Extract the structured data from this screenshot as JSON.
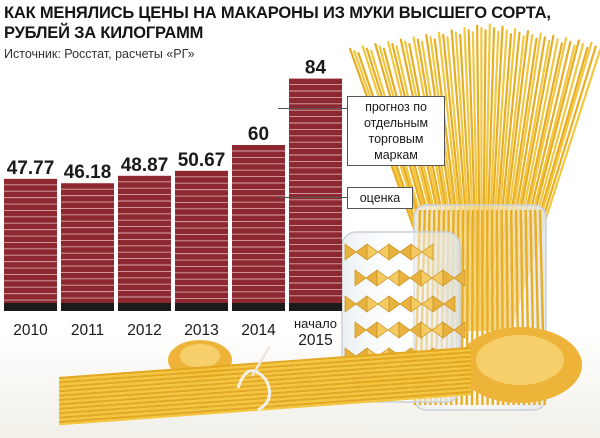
{
  "title_lines": [
    "КАК МЕНЯЛИСЬ ЦЕНЫ НА МАКАРОНЫ ИЗ МУКИ ВЫСШЕГО СОРТА,",
    "РУБЛЕЙ ЗА КИЛОГРАММ"
  ],
  "source": "Источник: Росстат, расчеты «РГ»",
  "callouts": {
    "forecast": "прогноз по отдельным торговым маркам",
    "estimate": "оценка"
  },
  "colors": {
    "bar": "#8e2830",
    "stripe": "#d7a6a9",
    "base": "#1b1b1b",
    "pasta": "#f1c23a"
  },
  "chart_data": {
    "type": "bar",
    "title": "КАК МЕНЯЛИСЬ ЦЕНЫ НА МАКАРОНЫ ИЗ МУКИ ВЫСШЕГО СОРТА, РУБЛЕЙ ЗА КИЛОГРАММ",
    "categories": [
      "2010",
      "2011",
      "2012",
      "2013",
      "2014",
      "начало 2015"
    ],
    "category_lines": [
      [
        "2010"
      ],
      [
        "2011"
      ],
      [
        "2012"
      ],
      [
        "2013"
      ],
      [
        "2014"
      ],
      [
        "начало",
        "2015"
      ]
    ],
    "values": [
      47.77,
      46.18,
      48.87,
      50.67,
      60,
      84
    ],
    "value_labels": [
      "47.77",
      "46.18",
      "48.87",
      "50.67",
      "60",
      "84"
    ],
    "ylim": [
      0,
      90
    ],
    "grid": false,
    "legend": "none"
  }
}
